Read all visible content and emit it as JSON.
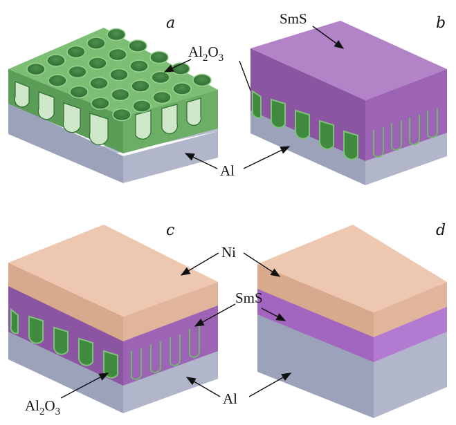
{
  "panels": [
    {
      "id": "a",
      "label": "a"
    },
    {
      "id": "b",
      "label": "b"
    },
    {
      "id": "c",
      "label": "c"
    },
    {
      "id": "d",
      "label": "d"
    }
  ],
  "labels": {
    "al2o3_base": "Al",
    "al2o3_sub": "2",
    "al2o3_o": "O",
    "al2o3_sub2": "3",
    "al": "Al",
    "sms": "SmS",
    "ni": "Ni"
  },
  "colors": {
    "alumina_green": "#5fa35a",
    "aluminum_gray": "#a9aec4",
    "sms_purple": "#b07cc7",
    "nickel_peach": "#e8c0a8"
  }
}
